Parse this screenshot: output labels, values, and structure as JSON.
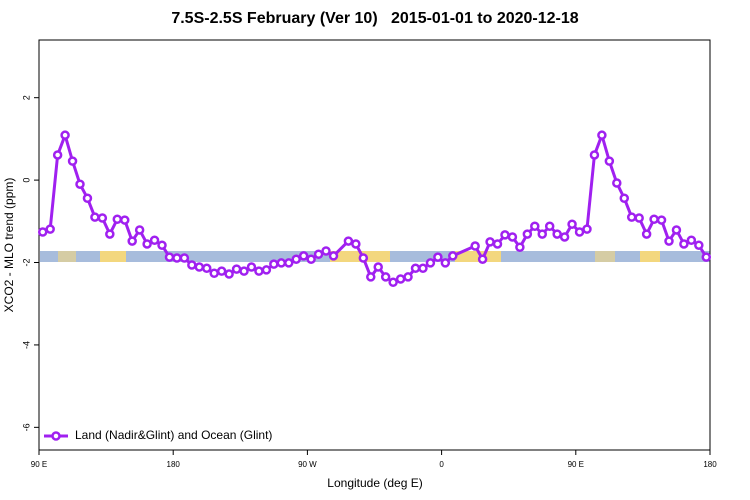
{
  "chart_data": {
    "type": "line",
    "title": "7.5S-2.5S February (Ver 10)   2015-01-01 to 2020-12-18",
    "x_label": "Longitude (deg E)",
    "y_label": "XCO2 - MLO trend (ppm)",
    "xlim": [
      90,
      540
    ],
    "ylim": [
      -6.55,
      3.4
    ],
    "xticks": [
      {
        "value": 90,
        "label": "90 E"
      },
      {
        "value": 180,
        "label": "180"
      },
      {
        "value": 270,
        "label": "90 W"
      },
      {
        "value": 360,
        "label": "0"
      },
      {
        "value": 450,
        "label": "90 E"
      },
      {
        "value": 540,
        "label": "180"
      }
    ],
    "yticks": [
      2,
      0,
      -2,
      -4,
      -6
    ],
    "legend": "bottom-left",
    "series": [
      {
        "name": "Land (Nadir&Glint) and Ocean (Glint)",
        "color": "#a020f0",
        "x": [
          92.5,
          97.5,
          102.5,
          107.5,
          112.5,
          117.5,
          122.5,
          127.5,
          132.5,
          137.5,
          142.5,
          147.5,
          152.5,
          157.5,
          162.5,
          167.5,
          172.5,
          177.5,
          182.5,
          187.5,
          192.5,
          197.5,
          202.5,
          207.5,
          212.5,
          217.5,
          222.5,
          227.5,
          232.5,
          237.5,
          242.5,
          247.5,
          252.5,
          257.5,
          262.5,
          267.5,
          272.5,
          277.5,
          282.5,
          287.5,
          297.5,
          302.5,
          307.5,
          312.5,
          317.5,
          322.5,
          327.5,
          332.5,
          337.5,
          342.5,
          347.5,
          352.5,
          357.5,
          362.5,
          367.5,
          382.5,
          387.5,
          392.5,
          397.5,
          402.5,
          407.5,
          412.5,
          417.5,
          422.5,
          427.5,
          432.5,
          437.5,
          442.5,
          447.5,
          452.5,
          457.5,
          462.5,
          467.5,
          472.5,
          477.5,
          482.5,
          487.5,
          492.5,
          497.5,
          502.5,
          507.5,
          512.5,
          517.5,
          522.5,
          527.5,
          532.5,
          537.5
        ],
        "values": [
          -1.26,
          -1.19,
          0.61,
          1.09,
          0.46,
          -0.1,
          -0.44,
          -0.9,
          -0.92,
          -1.31,
          -0.95,
          -0.97,
          -1.48,
          -1.21,
          -1.55,
          -1.46,
          -1.58,
          -1.87,
          -1.89,
          -1.89,
          -2.06,
          -2.11,
          -2.14,
          -2.26,
          -2.21,
          -2.28,
          -2.16,
          -2.21,
          -2.11,
          -2.21,
          -2.18,
          -2.04,
          -2.01,
          -2.01,
          -1.92,
          -1.84,
          -1.92,
          -1.8,
          -1.72,
          -1.84,
          -1.48,
          -1.55,
          -1.89,
          -2.35,
          -2.11,
          -2.35,
          -2.48,
          -2.4,
          -2.35,
          -2.14,
          -2.14,
          -2.01,
          -1.87,
          -2.01,
          -1.84,
          -1.6,
          -1.92,
          -1.5,
          -1.55,
          -1.33,
          -1.38,
          -1.63,
          -1.31,
          -1.12,
          -1.31,
          -1.12,
          -1.31,
          -1.38,
          -1.07,
          -1.26,
          -1.19,
          0.61,
          1.09,
          0.46,
          -0.07,
          -0.44,
          -0.9,
          -0.92,
          -1.31,
          -0.95,
          -0.97,
          -1.48,
          -1.21,
          -1.55,
          -1.46,
          -1.58,
          -1.87
        ]
      }
    ]
  }
}
